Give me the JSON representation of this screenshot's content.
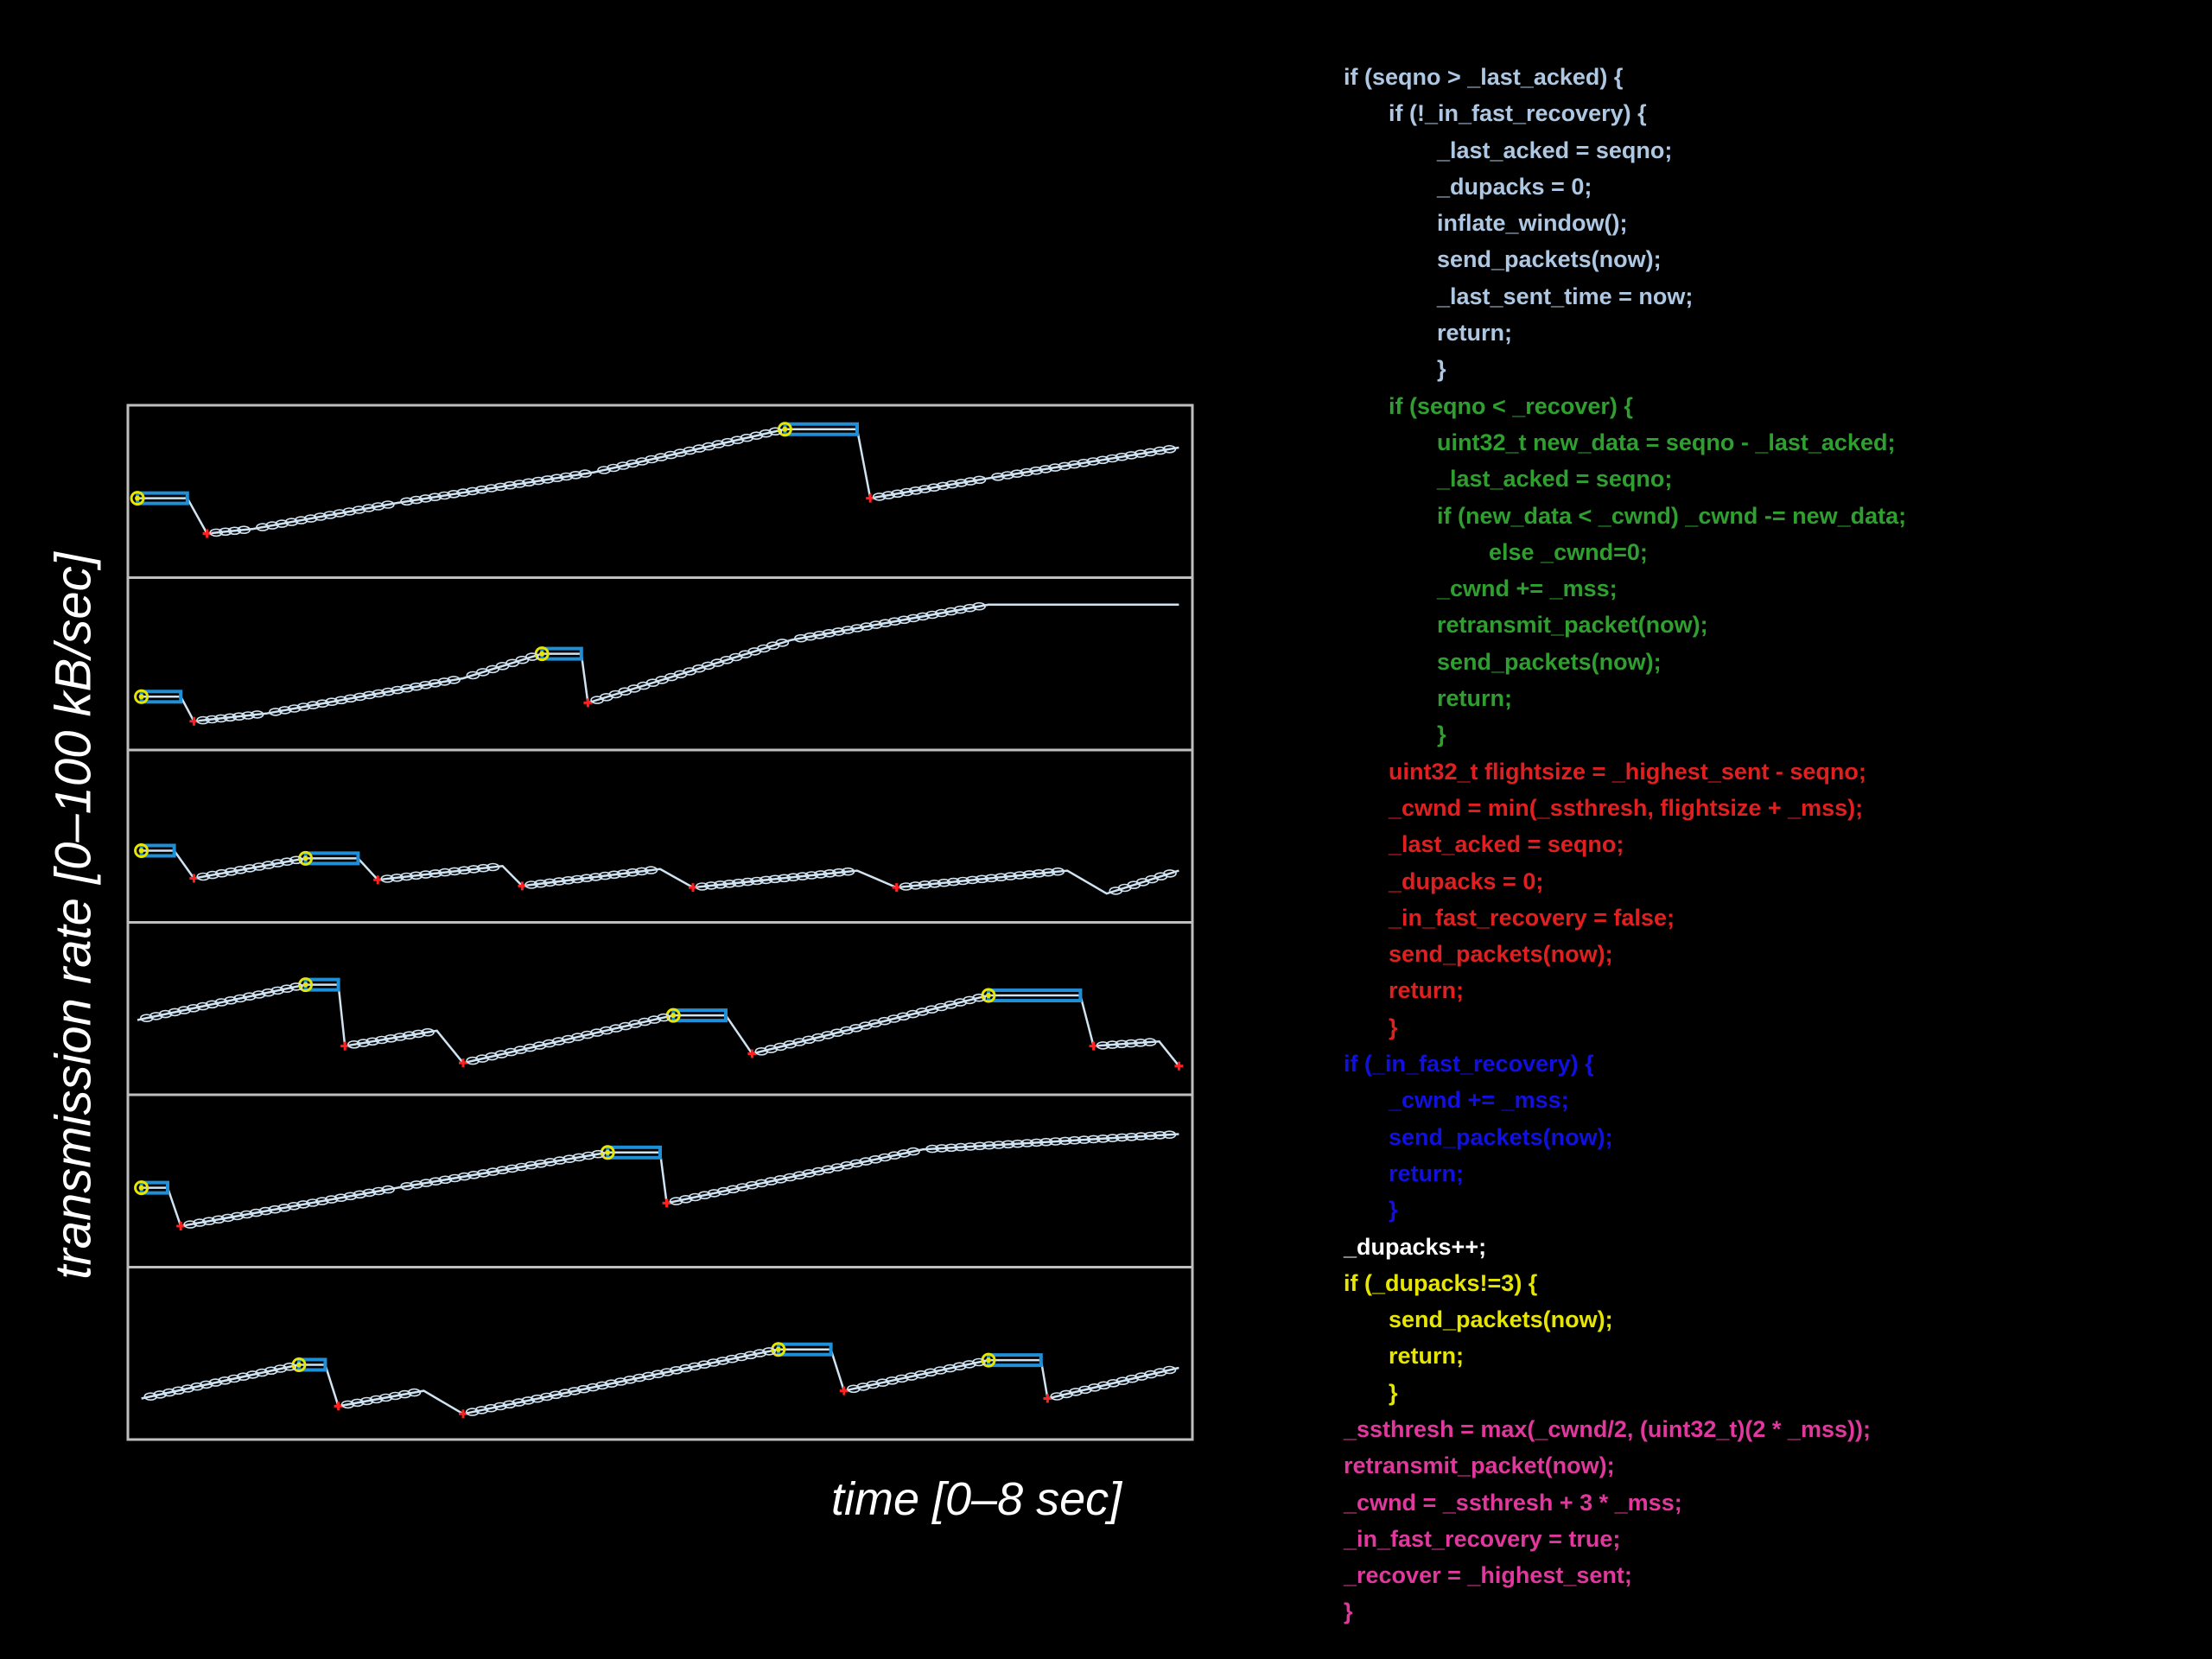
{
  "chart_labels": {
    "ylabel": "transmission rate [0–100 kB/sec]",
    "xlabel": "time [0–8 sec]"
  },
  "colors": {
    "background": "#000000",
    "trace": "#cfe3f2",
    "fast_recovery_box": "#1f8fd8",
    "dupack_marker": "#e6e600",
    "loss_marker": "#ff2020",
    "frame": "#bfbfbf",
    "code_normal": "#aec8e4",
    "code_partial": "#2fa02f",
    "code_full": "#e02020",
    "code_inrecovery": "#1010e0",
    "code_dupack": "#ffffff",
    "code_not3": "#e6e600",
    "code_enter": "#e0389c"
  },
  "chart_data": {
    "type": "line",
    "title": "",
    "xlabel": "time [0–8 sec]",
    "ylabel": "transmission rate [0–100 kB/sec]",
    "xlim": [
      0,
      8
    ],
    "ylim": [
      0,
      100
    ],
    "layout": "six stacked panels sharing time axis",
    "series": [
      {
        "points": [
          [
            0.02,
            45
          ],
          [
            0.4,
            45
          ],
          [
            0.55,
            22
          ],
          [
            0.9,
            25
          ],
          [
            2,
            42
          ],
          [
            3.5,
            62
          ],
          [
            4.95,
            90
          ],
          [
            5.5,
            90
          ],
          [
            5.6,
            45
          ],
          [
            6.5,
            58
          ],
          [
            7.95,
            78
          ]
        ]
      },
      {
        "points": [
          [
            0.05,
            28
          ],
          [
            0.35,
            28
          ],
          [
            0.45,
            12
          ],
          [
            1,
            17
          ],
          [
            2.5,
            40
          ],
          [
            3.1,
            56
          ],
          [
            3.4,
            56
          ],
          [
            3.45,
            24
          ],
          [
            5,
            65
          ],
          [
            6.5,
            88
          ],
          [
            7.95,
            88
          ]
        ]
      },
      {
        "points": [
          [
            0.05,
            40
          ],
          [
            0.3,
            40
          ],
          [
            0.45,
            22
          ],
          [
            1.3,
            35
          ],
          [
            1.7,
            35
          ],
          [
            1.85,
            21
          ],
          [
            2.8,
            30
          ],
          [
            2.95,
            17
          ],
          [
            4,
            28
          ],
          [
            4.25,
            16
          ],
          [
            5.5,
            27
          ],
          [
            5.8,
            16
          ],
          [
            7.1,
            27
          ],
          [
            7.4,
            12
          ],
          [
            7.95,
            27
          ]
        ]
      },
      {
        "points": [
          [
            0.02,
            42
          ],
          [
            1.3,
            65
          ],
          [
            1.55,
            65
          ],
          [
            1.6,
            25
          ],
          [
            2.3,
            35
          ],
          [
            2.5,
            14
          ],
          [
            4.1,
            45
          ],
          [
            4.5,
            45
          ],
          [
            4.7,
            20
          ],
          [
            6.5,
            58
          ],
          [
            7.2,
            58
          ],
          [
            7.3,
            25
          ],
          [
            7.8,
            28
          ],
          [
            7.95,
            12
          ]
        ]
      },
      {
        "points": [
          [
            0.05,
            45
          ],
          [
            0.25,
            45
          ],
          [
            0.35,
            20
          ],
          [
            2,
            45
          ],
          [
            3.6,
            68
          ],
          [
            4.0,
            68
          ],
          [
            4.05,
            35
          ],
          [
            6,
            70
          ],
          [
            7.95,
            80
          ]
        ]
      },
      {
        "points": [
          [
            0.05,
            20
          ],
          [
            1.25,
            42
          ],
          [
            1.45,
            42
          ],
          [
            1.55,
            15
          ],
          [
            2.2,
            25
          ],
          [
            2.5,
            10
          ],
          [
            4.9,
            52
          ],
          [
            5.3,
            52
          ],
          [
            5.4,
            25
          ],
          [
            6.5,
            45
          ],
          [
            6.9,
            45
          ],
          [
            6.95,
            20
          ],
          [
            7.95,
            40
          ]
        ]
      }
    ]
  },
  "code_lines": [
    {
      "indent": 0,
      "color": "normal",
      "text": "if (seqno > _last_acked) {"
    },
    {
      "indent": 1,
      "color": "normal",
      "text": "if (!_in_fast_recovery) {"
    },
    {
      "indent": 2,
      "color": "normal",
      "text": "_last_acked = seqno;"
    },
    {
      "indent": 2,
      "color": "normal",
      "text": "_dupacks = 0;"
    },
    {
      "indent": 2,
      "color": "normal",
      "text": "inflate_window();"
    },
    {
      "indent": 2,
      "color": "normal",
      "text": "send_packets(now);"
    },
    {
      "indent": 2,
      "color": "normal",
      "text": "_last_sent_time = now;"
    },
    {
      "indent": 2,
      "color": "normal",
      "text": "return;"
    },
    {
      "indent": 2,
      "color": "normal",
      "text": "}"
    },
    {
      "indent": 1,
      "color": "partial",
      "text": "if (seqno < _recover) {"
    },
    {
      "indent": 2,
      "color": "partial",
      "text": "uint32_t new_data = seqno - _last_acked;"
    },
    {
      "indent": 2,
      "color": "partial",
      "text": "_last_acked = seqno;"
    },
    {
      "indent": 2,
      "color": "partial",
      "text": "if (new_data < _cwnd) _cwnd -= new_data;"
    },
    {
      "indent": 3,
      "color": "partial",
      "text": "else _cwnd=0;"
    },
    {
      "indent": 2,
      "color": "partial",
      "text": "_cwnd += _mss;"
    },
    {
      "indent": 2,
      "color": "partial",
      "text": "retransmit_packet(now);"
    },
    {
      "indent": 2,
      "color": "partial",
      "text": "send_packets(now);"
    },
    {
      "indent": 2,
      "color": "partial",
      "text": "return;"
    },
    {
      "indent": 2,
      "color": "partial",
      "text": "}"
    },
    {
      "indent": 1,
      "color": "full",
      "text": "uint32_t flightsize = _highest_sent - seqno;"
    },
    {
      "indent": 1,
      "color": "full",
      "text": "_cwnd = min(_ssthresh, flightsize + _mss);"
    },
    {
      "indent": 1,
      "color": "full",
      "text": "_last_acked = seqno;"
    },
    {
      "indent": 1,
      "color": "full",
      "text": "_dupacks = 0;"
    },
    {
      "indent": 1,
      "color": "full",
      "text": "_in_fast_recovery = false;"
    },
    {
      "indent": 1,
      "color": "full",
      "text": "send_packets(now);"
    },
    {
      "indent": 1,
      "color": "full",
      "text": "return;"
    },
    {
      "indent": 1,
      "color": "full",
      "text": "}"
    },
    {
      "indent": 0,
      "color": "inrecovery",
      "text": "if (_in_fast_recovery) {"
    },
    {
      "indent": 1,
      "color": "inrecovery",
      "text": "_cwnd += _mss;"
    },
    {
      "indent": 1,
      "color": "inrecovery",
      "text": "send_packets(now);"
    },
    {
      "indent": 1,
      "color": "inrecovery",
      "text": "return;"
    },
    {
      "indent": 1,
      "color": "inrecovery",
      "text": "}"
    },
    {
      "indent": 0,
      "color": "dupack",
      "text": "_dupacks++;"
    },
    {
      "indent": 0,
      "color": "not3",
      "text": "if (_dupacks!=3) {"
    },
    {
      "indent": 1,
      "color": "not3",
      "text": "send_packets(now);"
    },
    {
      "indent": 1,
      "color": "not3",
      "text": "return;"
    },
    {
      "indent": 1,
      "color": "not3",
      "text": "}"
    },
    {
      "indent": 0,
      "color": "enter",
      "text": "_ssthresh = max(_cwnd/2, (uint32_t)(2 * _mss));"
    },
    {
      "indent": 0,
      "color": "enter",
      "text": "retransmit_packet(now);"
    },
    {
      "indent": 0,
      "color": "enter",
      "text": "_cwnd = _ssthresh + 3 * _mss;"
    },
    {
      "indent": 0,
      "color": "enter",
      "text": "_in_fast_recovery = true;"
    },
    {
      "indent": 0,
      "color": "enter",
      "text": "_recover = _highest_sent;"
    },
    {
      "indent": 0,
      "color": "enter",
      "text": "}"
    }
  ]
}
